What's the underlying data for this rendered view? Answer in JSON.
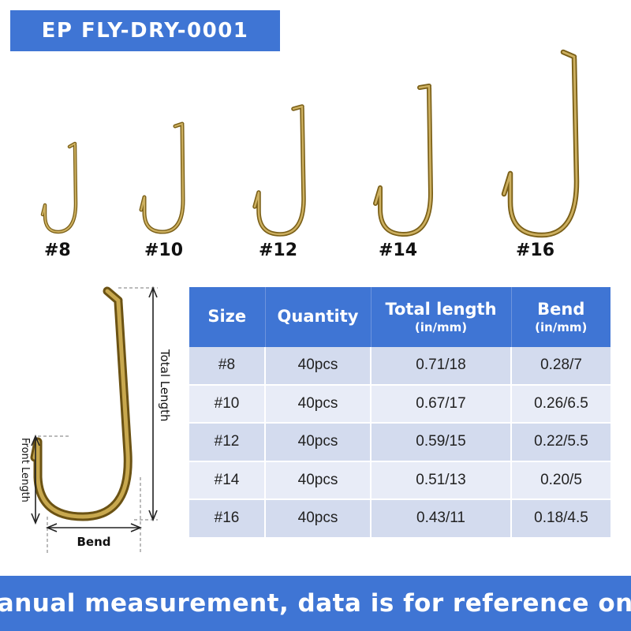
{
  "header": {
    "product_code": "EP FLY-DRY-0001"
  },
  "hooks": [
    {
      "size": "#8"
    },
    {
      "size": "#10"
    },
    {
      "size": "#12"
    },
    {
      "size": "#14"
    },
    {
      "size": "#16"
    }
  ],
  "diagram": {
    "total_length_label": "Total Length",
    "front_length_label": "Front Length",
    "bend_label": "Bend"
  },
  "table": {
    "headers": [
      {
        "label": "Size",
        "unit": ""
      },
      {
        "label": "Quantity",
        "unit": ""
      },
      {
        "label": "Total length",
        "unit": "(in/mm)"
      },
      {
        "label": "Bend",
        "unit": "(in/mm)"
      }
    ],
    "rows": [
      [
        "#8",
        "40pcs",
        "0.71/18",
        "0.28/7"
      ],
      [
        "#10",
        "40pcs",
        "0.67/17",
        "0.26/6.5"
      ],
      [
        "#12",
        "40pcs",
        "0.59/15",
        "0.22/5.5"
      ],
      [
        "#14",
        "40pcs",
        "0.51/13",
        "0.20/5"
      ],
      [
        "#16",
        "40pcs",
        "0.43/11",
        "0.18/4.5"
      ]
    ]
  },
  "footer": {
    "note": "Manual measurement, data is for reference only"
  },
  "colors": {
    "accent": "#3f75d4",
    "hook_gold": "#b89a3c",
    "row_dark": "#d3dbee",
    "row_light": "#e8ecf7"
  }
}
